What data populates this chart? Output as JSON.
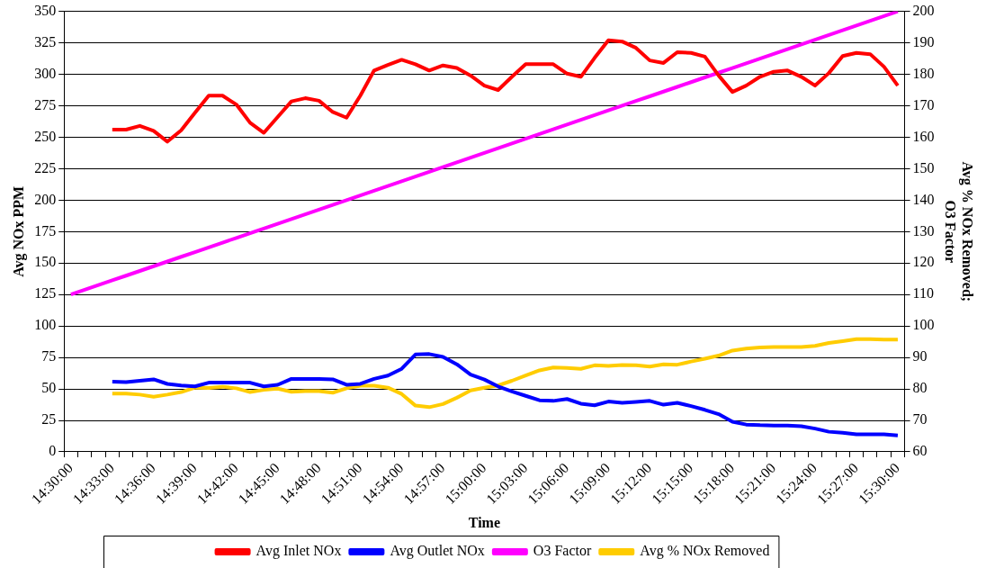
{
  "chart_data": {
    "type": "line",
    "xlabel": "Time",
    "ylabel": "Avg NOx PPM",
    "y2label": "Avg % NOx Removed;\nO3 Factor",
    "categories": [
      "14:30:00",
      null,
      null,
      "14:33:00",
      null,
      null,
      "14:36:00",
      null,
      null,
      "14:39:00",
      null,
      null,
      "14:42:00",
      null,
      null,
      "14:45:00",
      null,
      null,
      "14:48:00",
      null,
      null,
      "14:51:00",
      null,
      null,
      "14:54:00",
      null,
      null,
      "14:57:00",
      null,
      null,
      "15:00:00",
      null,
      null,
      "15:03:00",
      null,
      null,
      "15:06:00",
      null,
      null,
      "15:09:00",
      null,
      null,
      "15:12:00",
      null,
      null,
      "15:15:00",
      null,
      null,
      "15:18:00",
      null,
      null,
      "15:21:00",
      null,
      null,
      "15:24:00",
      null,
      null,
      "15:27:00",
      null,
      null,
      "15:30:00"
    ],
    "series": [
      {
        "name": "Avg Inlet NOx",
        "color": "#ff0000",
        "values": [
          null,
          null,
          null,
          256,
          256,
          259,
          255,
          246.5,
          255.5,
          269.5,
          283,
          283,
          276,
          261.5,
          253.5,
          266,
          278.5,
          281,
          279,
          270,
          265.5,
          283,
          303,
          307.5,
          311.5,
          308,
          303,
          307,
          305,
          299,
          291,
          287.5,
          298,
          308,
          308,
          308,
          300.5,
          298,
          313,
          327,
          326,
          321,
          311,
          309,
          317.5,
          317,
          314,
          299,
          286,
          291,
          298,
          302,
          303,
          298,
          291,
          301,
          314.5,
          317,
          316,
          306,
          291
        ]
      },
      {
        "name": "Avg Outlet NOx",
        "color": "#0000ff",
        "values": [
          null,
          null,
          null,
          55.7,
          55.4,
          56.5,
          57.6,
          54,
          52.7,
          52,
          55,
          55,
          55,
          55,
          52,
          53.3,
          58,
          58,
          58,
          57.6,
          53.3,
          54,
          58,
          60.6,
          66,
          77.4,
          77.7,
          75.5,
          69.6,
          61.4,
          57.5,
          52,
          48,
          44.5,
          41,
          40.5,
          42,
          38.3,
          37,
          40,
          39,
          39.7,
          40.5,
          37.5,
          39,
          36.4,
          33.4,
          30,
          24,
          21.7,
          21.2,
          21,
          21,
          20.4,
          18.5,
          16,
          15.2,
          14,
          13.9,
          13.9,
          13
        ]
      },
      {
        "name": "O3 Factor",
        "color": "#ff00ff",
        "axis": "y2",
        "values": [
          110,
          111.5,
          113,
          114.5,
          116,
          117.5,
          119,
          120.5,
          122,
          123.5,
          125,
          126.5,
          128,
          129.5,
          131,
          132.5,
          134,
          135.5,
          137,
          138.5,
          140,
          141.5,
          143,
          144.5,
          146,
          147.5,
          149,
          150.5,
          152,
          153.5,
          155,
          156.5,
          158,
          159.5,
          161,
          162.5,
          164,
          165.5,
          167,
          168.5,
          170,
          171.5,
          173,
          174.5,
          176,
          177.5,
          179,
          180.5,
          182,
          183.5,
          185,
          186.5,
          188,
          189.5,
          191,
          192.5,
          194,
          195.5,
          197,
          198.5,
          200
        ]
      },
      {
        "name": "Avg % NOx Removed",
        "color": "#ffcc00",
        "axis": "y2",
        "values": [
          null,
          null,
          null,
          78.5,
          78.5,
          78.2,
          77.5,
          78.2,
          79,
          80.4,
          80.3,
          80.7,
          80.2,
          79,
          79.7,
          80.1,
          79.1,
          79.3,
          79.3,
          78.8,
          80.2,
          81,
          81,
          80.4,
          78.4,
          74.7,
          74.2,
          75.2,
          77.2,
          79.5,
          80.4,
          81.1,
          82.6,
          84.3,
          85.9,
          86.8,
          86.7,
          86.4,
          87.5,
          87.3,
          87.6,
          87.5,
          87.1,
          87.8,
          87.7,
          88.7,
          89.6,
          90.6,
          92.2,
          92.8,
          93.2,
          93.3,
          93.3,
          93.3,
          93.7,
          94.6,
          95.2,
          95.8,
          95.8,
          95.7,
          95.7
        ]
      }
    ],
    "ylim": [
      0,
      350
    ],
    "yticks": [
      0,
      25,
      50,
      75,
      100,
      125,
      150,
      175,
      200,
      225,
      250,
      275,
      300,
      325,
      350
    ],
    "y2lim": [
      60,
      200
    ],
    "y2ticks": [
      60,
      70,
      80,
      90,
      100,
      110,
      120,
      130,
      140,
      150,
      160,
      170,
      180,
      190,
      200
    ],
    "grid": "y",
    "legend": "bottom",
    "marker": "none",
    "line_style": "solid"
  }
}
